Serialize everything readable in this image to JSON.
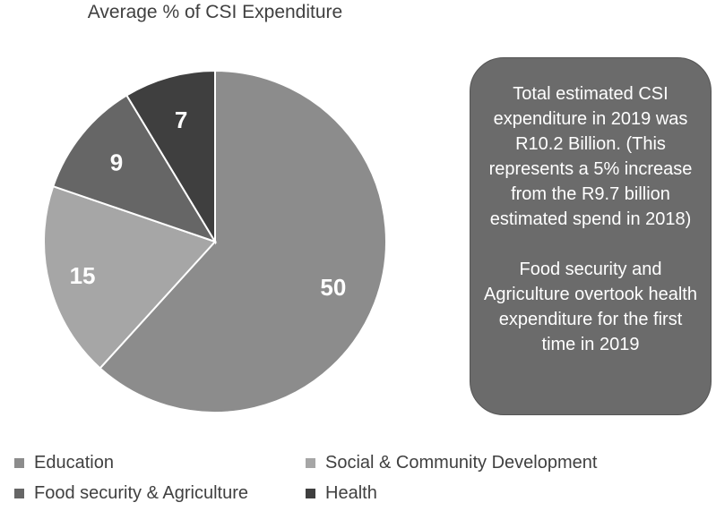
{
  "chart_data": {
    "type": "pie",
    "title": "Average % of CSI Expenditure",
    "categories": [
      "Education",
      "Social & Community Development",
      "Food security & Agriculture",
      "Health"
    ],
    "values": [
      50,
      15,
      9,
      7
    ],
    "data_labels": [
      "50",
      "15",
      "9",
      "7"
    ],
    "colors": [
      "#8c8c8c",
      "#a6a6a6",
      "#666666",
      "#3f3f3f"
    ],
    "start_angle": "12 o'clock",
    "direction": "clockwise",
    "legend_position": "bottom"
  },
  "info_box": {
    "paragraph_1": "Total estimated CSI expenditure in 2019 was R10.2 Billion. (This represents a 5% increase from the R9.7 billion estimated spend in 2018)",
    "paragraph_2": "Food security and Agriculture overtook health expenditure for the first time in 2019",
    "background_color": "#6b6b6b"
  }
}
